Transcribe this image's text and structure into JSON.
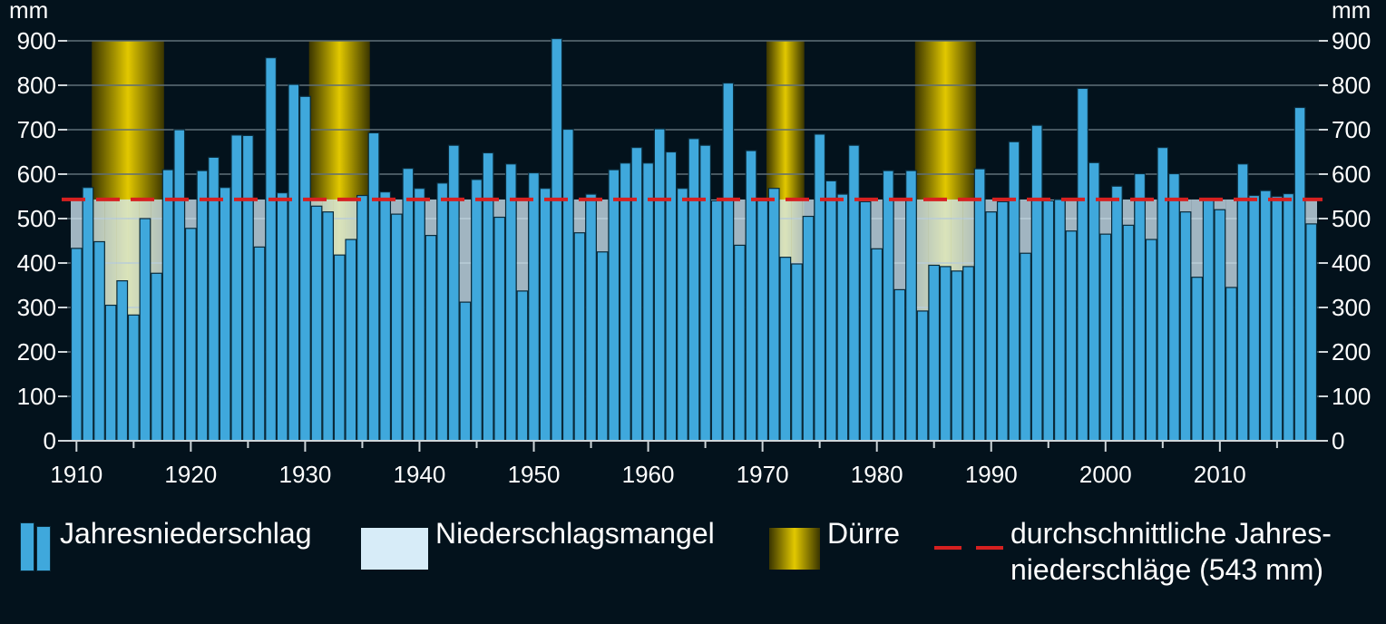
{
  "chart_data": {
    "type": "bar",
    "unit_left": "mm",
    "unit_right": "mm",
    "ylim": [
      0,
      900
    ],
    "y_ticks": [
      "0",
      "100",
      "200",
      "300",
      "400",
      "500",
      "600",
      "700",
      "800",
      "900"
    ],
    "x_ticks": [
      "1910",
      "1920",
      "1930",
      "1940",
      "1950",
      "1960",
      "1970",
      "1980",
      "1990",
      "2000",
      "2010"
    ],
    "average": 543,
    "years": [
      1910,
      1911,
      1912,
      1913,
      1914,
      1915,
      1916,
      1917,
      1918,
      1919,
      1920,
      1921,
      1922,
      1923,
      1924,
      1925,
      1926,
      1927,
      1928,
      1929,
      1930,
      1931,
      1932,
      1933,
      1934,
      1935,
      1936,
      1937,
      1938,
      1939,
      1940,
      1941,
      1942,
      1943,
      1944,
      1945,
      1946,
      1947,
      1948,
      1949,
      1950,
      1951,
      1952,
      1953,
      1954,
      1955,
      1956,
      1957,
      1958,
      1959,
      1960,
      1961,
      1962,
      1963,
      1964,
      1965,
      1966,
      1967,
      1968,
      1969,
      1970,
      1971,
      1972,
      1973,
      1974,
      1975,
      1976,
      1977,
      1978,
      1979,
      1980,
      1981,
      1982,
      1983,
      1984,
      1985,
      1986,
      1987,
      1988,
      1989,
      1990,
      1991,
      1992,
      1993,
      1994,
      1995,
      1996,
      1997,
      1998,
      1999,
      2000,
      2001,
      2002,
      2003,
      2004,
      2005,
      2006,
      2007,
      2008,
      2009,
      2010,
      2011,
      2012,
      2013,
      2014,
      2015,
      2016,
      2017,
      2018
    ],
    "values": [
      433,
      570,
      448,
      305,
      360,
      283,
      500,
      377,
      610,
      700,
      478,
      608,
      638,
      570,
      688,
      687,
      436,
      862,
      558,
      802,
      775,
      528,
      515,
      418,
      453,
      552,
      693,
      560,
      510,
      613,
      568,
      462,
      580,
      665,
      312,
      588,
      648,
      503,
      623,
      337,
      603,
      568,
      905,
      701,
      468,
      555,
      425,
      610,
      625,
      660,
      625,
      702,
      650,
      568,
      680,
      665,
      540,
      805,
      440,
      653,
      540,
      568,
      413,
      398,
      505,
      690,
      585,
      555,
      665,
      538,
      432,
      608,
      340,
      608,
      292,
      395,
      392,
      382,
      392,
      612,
      515,
      538,
      673,
      422,
      710,
      540,
      543,
      472,
      793,
      626,
      465,
      573,
      485,
      601,
      453,
      660,
      601,
      515,
      368,
      543,
      520,
      345,
      623,
      552,
      563,
      550,
      556,
      750,
      488
    ],
    "duerre_periods": [
      [
        1912,
        1917
      ],
      [
        1931,
        1935
      ],
      [
        1971,
        1973
      ],
      [
        1984,
        1988
      ]
    ],
    "legend": {
      "bars": "Jahresniederschlag",
      "mangel": "Niederschlagsmangel",
      "duerre": "Dürre",
      "avg_line1": "durchschnittliche Jahres-",
      "avg_line2": "niederschläge (543 mm)"
    },
    "colors": {
      "bar": "#3fa8dc",
      "bar_edge": "#0a2a3a",
      "mangel": "#d7ecf8",
      "duerre": "#e2c800",
      "avg_line": "#d62020",
      "grid": "#5f6f78",
      "background": "#03121c"
    }
  }
}
